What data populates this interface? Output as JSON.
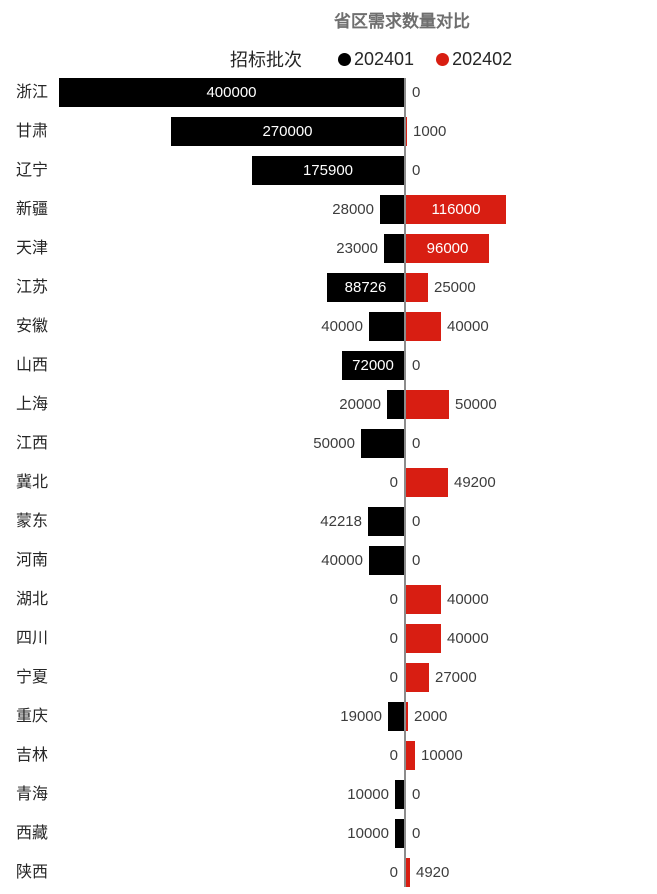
{
  "title": {
    "text": "省区需求数量对比",
    "color": "#6f6f6f"
  },
  "legend": {
    "name": "招标批次",
    "items": [
      {
        "label": "202401",
        "color": "#000000"
      },
      {
        "label": "202402",
        "color": "#d81e12"
      }
    ]
  },
  "colors": {
    "axis_line": "#8c8c8c",
    "label_inside": "#ffffff",
    "label_outside": "#3d3d3d",
    "category_text": "#262626",
    "series_black": "#000000",
    "series_red": "#d81e12"
  },
  "chart_data": {
    "type": "bar",
    "orientation": "horizontal-diverging",
    "title": "省区需求数量对比",
    "legend_title": "招标批次",
    "legend_position": "top",
    "grid": false,
    "value_axis_range_left": [
      0,
      400000
    ],
    "value_axis_range_right": [
      0,
      116000
    ],
    "categories": [
      "浙江",
      "甘肃",
      "辽宁",
      "新疆",
      "天津",
      "江苏",
      "安徽",
      "山西",
      "上海",
      "江西",
      "冀北",
      "蒙东",
      "河南",
      "湖北",
      "四川",
      "宁夏",
      "重庆",
      "吉林",
      "青海",
      "西藏",
      "陕西"
    ],
    "series": [
      {
        "name": "202401",
        "color": "#000000",
        "direction": "left",
        "values": [
          400000,
          270000,
          175900,
          28000,
          23000,
          88726,
          40000,
          72000,
          20000,
          50000,
          0,
          42218,
          40000,
          0,
          0,
          0,
          19000,
          0,
          10000,
          10000,
          0
        ]
      },
      {
        "name": "202402",
        "color": "#d81e12",
        "direction": "right",
        "values": [
          0,
          1000,
          0,
          116000,
          96000,
          25000,
          40000,
          0,
          50000,
          0,
          49200,
          0,
          0,
          40000,
          40000,
          27000,
          2000,
          10000,
          0,
          0,
          4920
        ]
      }
    ]
  }
}
